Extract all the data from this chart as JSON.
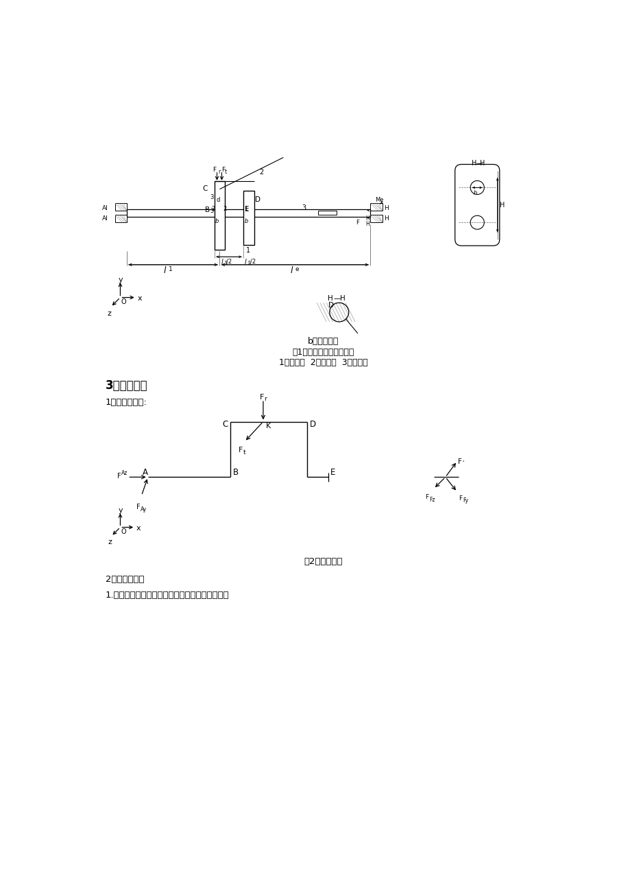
{
  "bg_color": "#ffffff",
  "title_b": "b）力学模型",
  "title_fig1": "图1单缸柴油机曲轴简化图",
  "title_fig1_sub": "1－曲轴颈  2－曲柄臂  3－主轴颈",
  "section3_title": "3、内力分析",
  "subsec1": "1）外力分析图:",
  "fig2_caption": "图2外力分析图",
  "subsec2": "2）外力分析：",
  "item1": "1.画出曲轴的计算简图（上图），计算外力偶矩。"
}
